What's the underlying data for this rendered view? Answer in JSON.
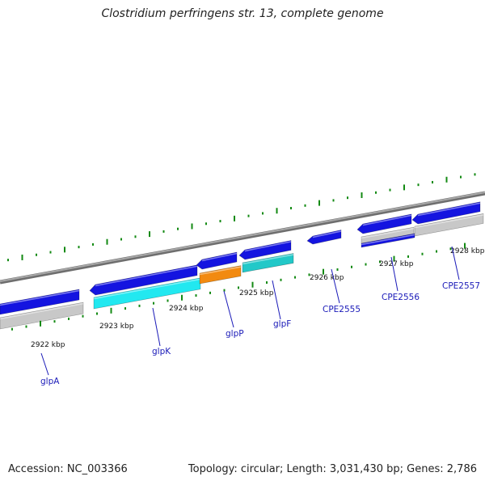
{
  "title": "Clostridium perfringens str. 13, complete genome",
  "footer": {
    "accession": "Accession: NC_003366",
    "topology": "Topology: circular; Length: 3,031,430 bp; Genes: 2,786"
  },
  "colors": {
    "backbone": "#8a8a8a",
    "gene_blue": "#1414e0",
    "cds_cyan": "#22e8f0",
    "cds_orange": "#f28a10",
    "cds_teal": "#22c8c8",
    "cds_gray": "#c8c8c8",
    "tick_green": "#138a13",
    "label_blue": "#1a1ab8"
  },
  "axis": {
    "kbp_labels": [
      "2922 kbp",
      "2923 kbp",
      "2924 kbp",
      "2925 kbp",
      "2926 kbp",
      "2927 kbp",
      "2928 kbp"
    ]
  },
  "gene_labels": [
    "glpA",
    "glpK",
    "glpP",
    "glpF",
    "CPE2555",
    "CPE2556",
    "CPE2557"
  ]
}
